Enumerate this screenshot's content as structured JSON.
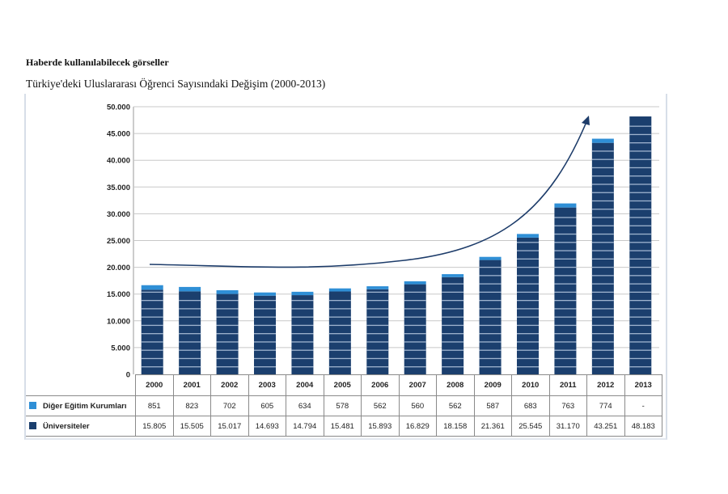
{
  "page": {
    "heading": "Haberde kullanılabilecek görseller",
    "subtitle": "Türkiye'deki Uluslararası Öğrenci Sayısındaki Değişim (2000-2013)"
  },
  "colors": {
    "universities": "#1b3f6e",
    "other": "#2f8fd6",
    "stripe": "#9fb4cf",
    "grid": "#c8c8c8",
    "arrow": "#1d3c6a"
  },
  "chart_data": {
    "type": "bar",
    "stacked": true,
    "title": "Türkiye'deki Uluslararası Öğrenci Sayısındaki Değişim (2000-2013)",
    "xlabel": "",
    "ylabel": "",
    "ylim": [
      0,
      50000
    ],
    "yticks": [
      0,
      5000,
      10000,
      15000,
      20000,
      25000,
      30000,
      35000,
      40000,
      45000,
      50000
    ],
    "ytick_labels": [
      "0",
      "5.000",
      "10.000",
      "15.000",
      "20.000",
      "25.000",
      "30.000",
      "35.000",
      "40.000",
      "45.000",
      "50.000"
    ],
    "grid": true,
    "legend": "data-table-left",
    "categories": [
      "2000",
      "2001",
      "2002",
      "2003",
      "2004",
      "2005",
      "2006",
      "2007",
      "2008",
      "2009",
      "2010",
      "2011",
      "2012",
      "2013"
    ],
    "series": [
      {
        "name": "Üniversiteler",
        "values": [
          15805,
          15505,
          15017,
          14693,
          14794,
          15481,
          15893,
          16829,
          18158,
          21361,
          25545,
          31170,
          43251,
          48183
        ],
        "labels": [
          "15.805",
          "15.505",
          "15.017",
          "14.693",
          "14.794",
          "15.481",
          "15.893",
          "16.829",
          "18.158",
          "21.361",
          "25.545",
          "31.170",
          "43.251",
          "48.183"
        ]
      },
      {
        "name": "Diğer Eğitim Kurumları",
        "values": [
          851,
          823,
          702,
          605,
          634,
          578,
          562,
          560,
          562,
          587,
          683,
          763,
          774,
          null
        ],
        "labels": [
          "851",
          "823",
          "702",
          "605",
          "634",
          "578",
          "562",
          "560",
          "562",
          "587",
          "683",
          "763",
          "774",
          "-"
        ]
      }
    ],
    "annotations": [
      {
        "type": "trend-arrow",
        "description": "curved arrow rising from ~20.500 at 2000 to above 2012 bar"
      }
    ]
  }
}
